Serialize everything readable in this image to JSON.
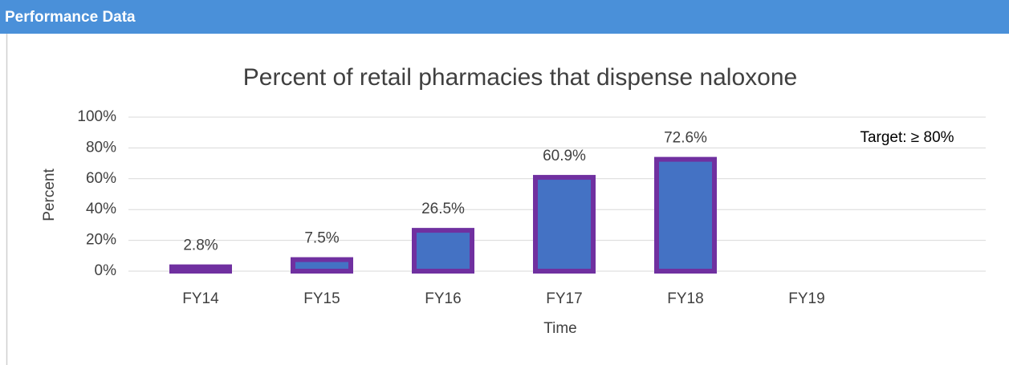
{
  "header": {
    "title": "Performance Data"
  },
  "chart_data": {
    "type": "bar",
    "title": "Percent of retail pharmacies that dispense naloxone",
    "x_label": "Time",
    "y_label": "Percent",
    "annotation": "Target: ≥ 80%",
    "categories": [
      "FY14",
      "FY15",
      "FY16",
      "FY17",
      "FY18",
      "FY19"
    ],
    "values": [
      2.8,
      7.5,
      26.5,
      60.9,
      72.6,
      null
    ],
    "value_labels": [
      "2.8%",
      "7.5%",
      "26.5%",
      "60.9%",
      "72.6%",
      null
    ],
    "color": "#4472c4",
    "edge_color": "#7030a0",
    "ylim": [
      0,
      100
    ],
    "yticks": [
      {
        "value": 0,
        "label": "0%"
      },
      {
        "value": 20,
        "label": "20%"
      },
      {
        "value": 40,
        "label": "40%"
      },
      {
        "value": 60,
        "label": "60%"
      },
      {
        "value": 80,
        "label": "80%"
      },
      {
        "value": 100,
        "label": "100%"
      }
    ],
    "grid": true
  }
}
